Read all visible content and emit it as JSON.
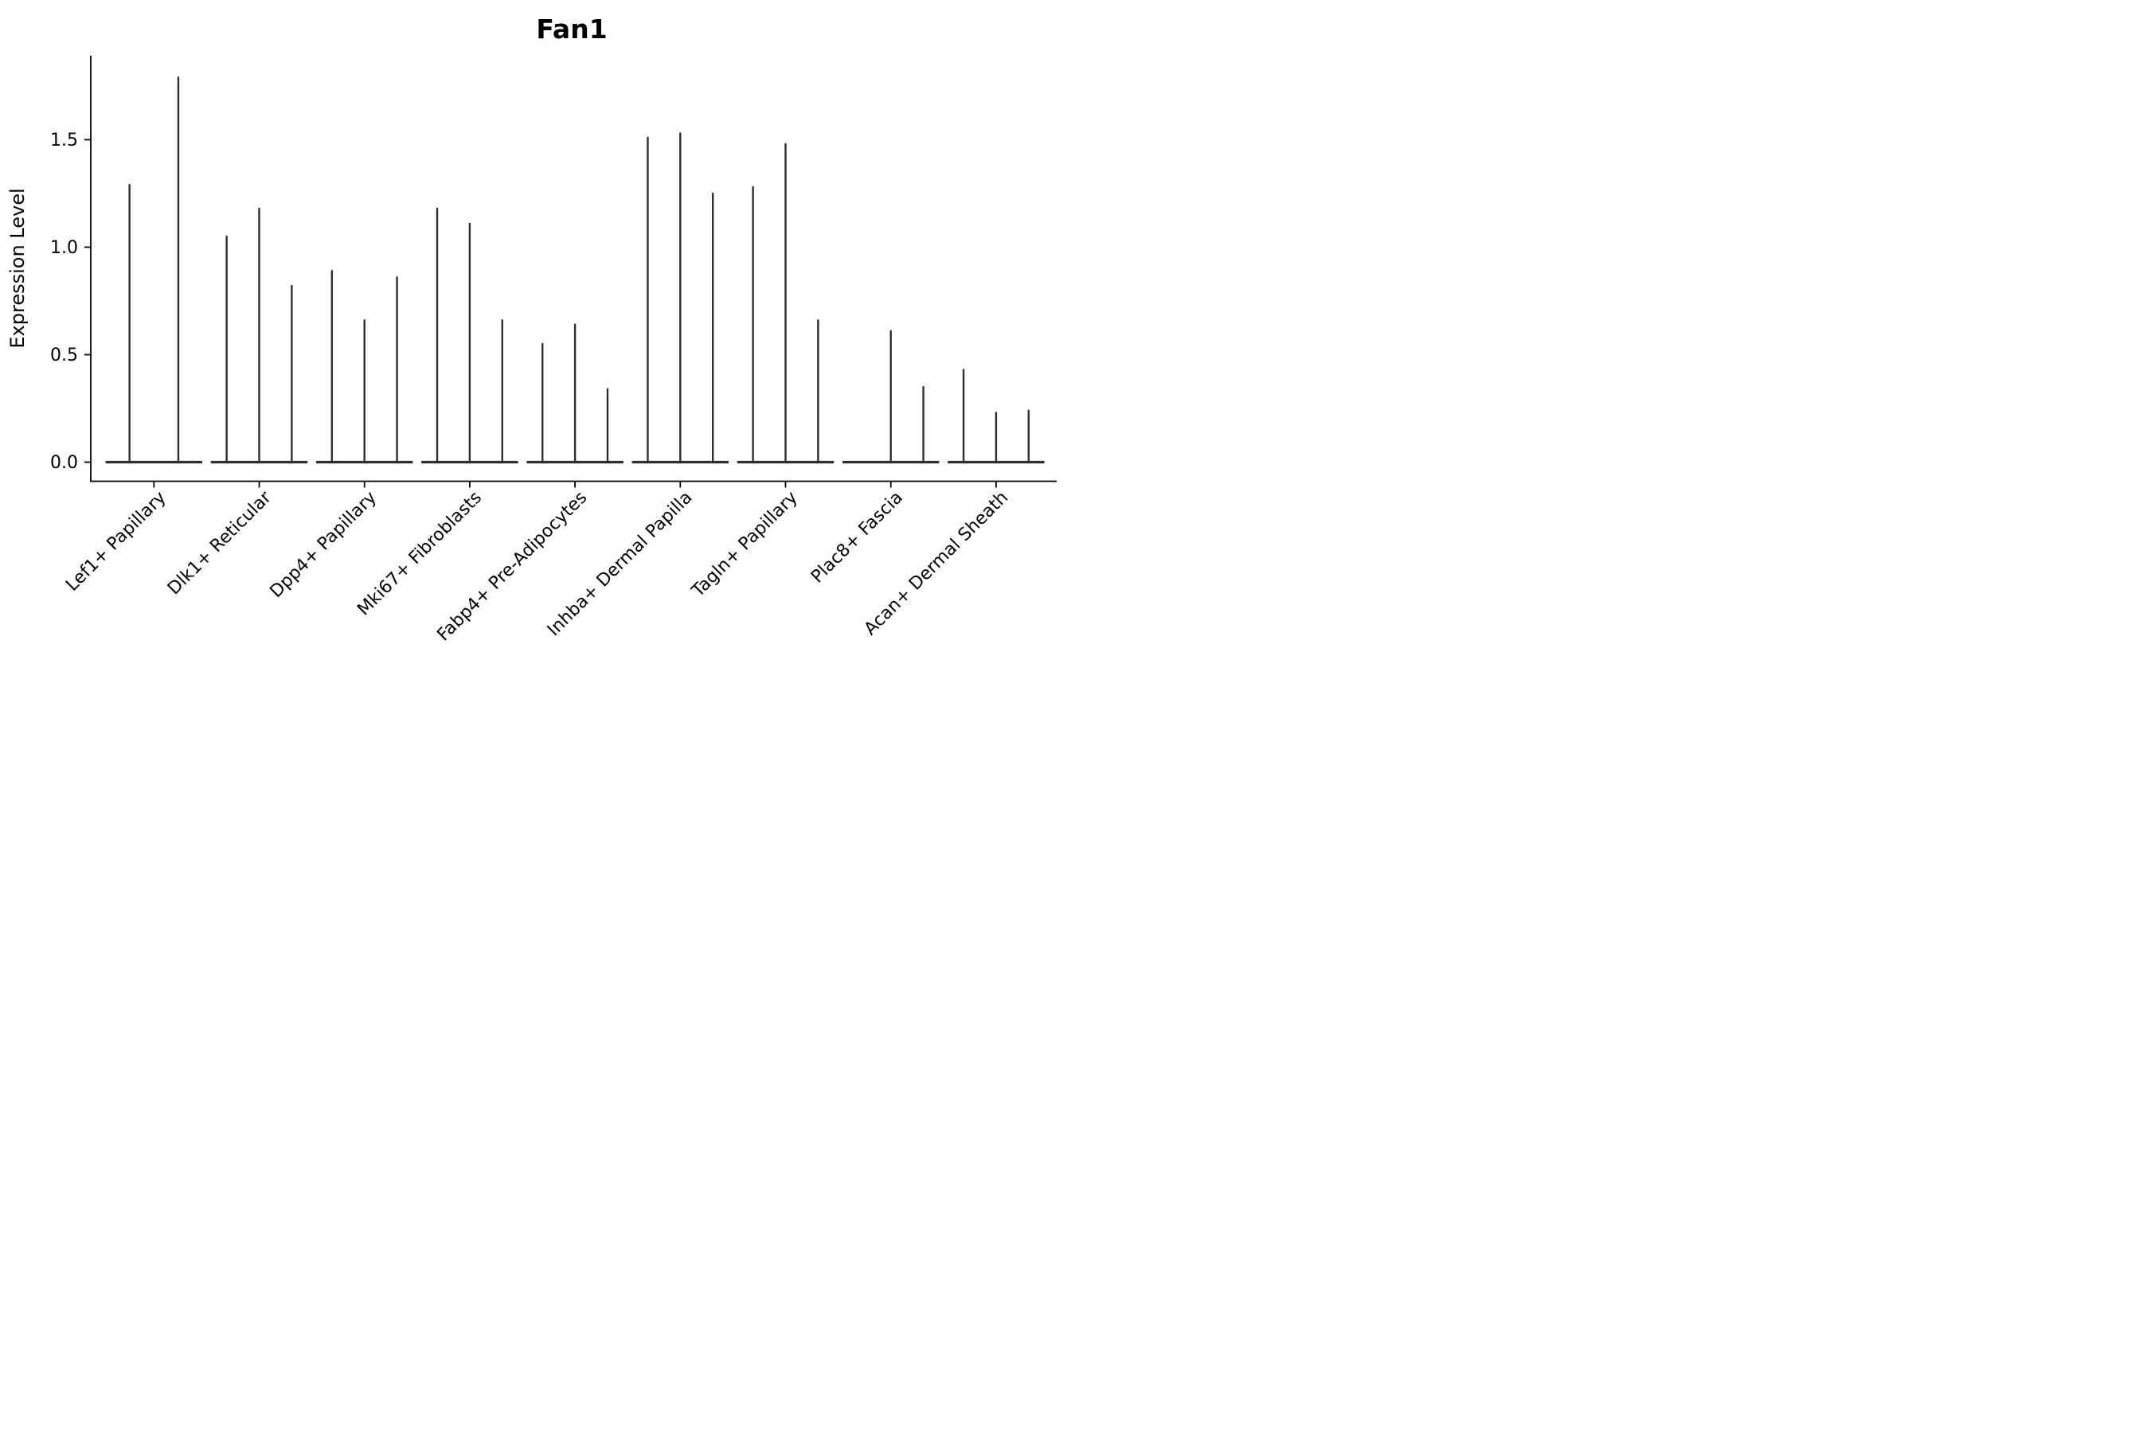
{
  "title": "Fan1",
  "ylabel": "Expression Level",
  "chart_data": {
    "type": "violin",
    "description": "Thin needle violin plot of gene expression per fibroblast cluster; each cluster has 2-3 narrow violins (peak expression values listed per violin, 0 = flat violin with no spike).",
    "categories": [
      "Lef1+ Papillary",
      "Dlk1+ Reticular",
      "Dpp4+ Papillary",
      "Mki67+ Fibroblasts",
      "Fabp4+ Pre-Adipocytes",
      "Inhba+ Dermal Papilla",
      "Tagln+ Papillary",
      "Plac8+ Fascia",
      "Acan+ Dermal Sheath"
    ],
    "groups": [
      {
        "label": "Lef1+ Papillary",
        "peaks": [
          1.29,
          1.79
        ]
      },
      {
        "label": "Dlk1+ Reticular",
        "peaks": [
          1.05,
          1.18,
          0.82
        ]
      },
      {
        "label": "Dpp4+ Papillary",
        "peaks": [
          0.89,
          0.66,
          0.86
        ]
      },
      {
        "label": "Mki67+ Fibroblasts",
        "peaks": [
          1.18,
          1.11,
          0.66
        ]
      },
      {
        "label": "Fabp4+ Pre-Adipocytes",
        "peaks": [
          0.55,
          0.64,
          0.34
        ]
      },
      {
        "label": "Inhba+ Dermal Papilla",
        "peaks": [
          1.51,
          1.53,
          1.25
        ]
      },
      {
        "label": "Tagln+ Papillary",
        "peaks": [
          1.28,
          1.48,
          0.66
        ]
      },
      {
        "label": "Plac8+ Fascia",
        "peaks": [
          0.0,
          0.61,
          0.35
        ]
      },
      {
        "label": "Acan+ Dermal Sheath",
        "peaks": [
          0.43,
          0.23,
          0.24
        ]
      }
    ],
    "yticks": [
      "0.0",
      "0.5",
      "1.0",
      "1.5"
    ],
    "ytick_values": [
      0.0,
      0.5,
      1.0,
      1.5
    ],
    "ylim": [
      -0.09,
      1.89
    ],
    "xlabel": "",
    "ylabel": "Expression Level",
    "title": "Fan1",
    "grid": false,
    "legend": "none",
    "violin_color": "#2f2f2f",
    "axis_color": "#000000",
    "x_tick_rotation_deg": 45
  }
}
